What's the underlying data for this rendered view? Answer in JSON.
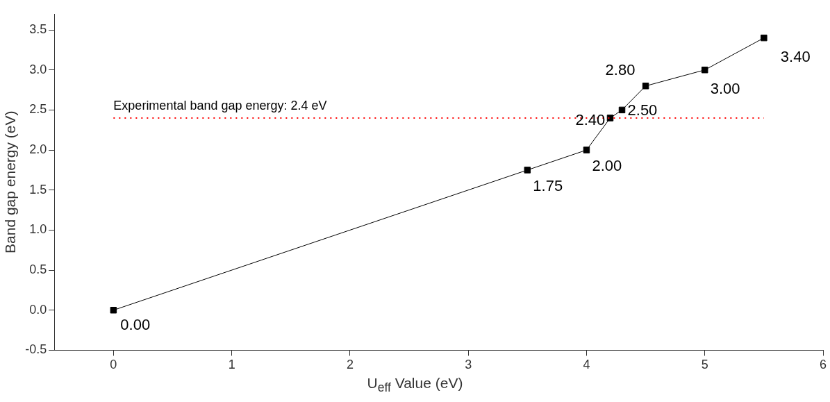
{
  "chart_data": {
    "type": "line",
    "xlabel": "U$_{eff}$ Value (eV)",
    "ylabel": "Band gap energy (eV)",
    "x": [
      0,
      3.5,
      4,
      4.2,
      4.3,
      4.5,
      5,
      5.5
    ],
    "series": [
      {
        "color": "#000000",
        "values": [
          0.0,
          1.75,
          2.0,
          2.4,
          2.5,
          2.8,
          3.0,
          3.4
        ],
        "value_labels": [
          "0.00",
          "1.75",
          "2.00",
          "2.40",
          "2.50",
          "2.80",
          "3.00",
          "3.40"
        ]
      }
    ],
    "xlim": [
      -0.5,
      6
    ],
    "xticks": [
      0,
      1,
      2,
      3,
      4,
      5,
      6
    ],
    "ylim": [
      -0.5,
      3.7
    ],
    "yticks": [
      -0.5,
      {
        "value": 0,
        "label": "0.0"
      },
      0.5,
      {
        "value": 1,
        "label": "1.0"
      },
      1.5,
      {
        "value": 2,
        "label": "2.0"
      },
      2.5,
      {
        "value": 3,
        "label": "3.0"
      },
      3.5
    ],
    "ref_lines": [
      {
        "axis": "y",
        "value": 2.4,
        "label": "Experimental band gap energy: 2.4 eV",
        "color": "#ff0000",
        "line_style": "dotted"
      }
    ],
    "marker": "square",
    "line_style": "solid",
    "grid": false,
    "legend": false
  }
}
